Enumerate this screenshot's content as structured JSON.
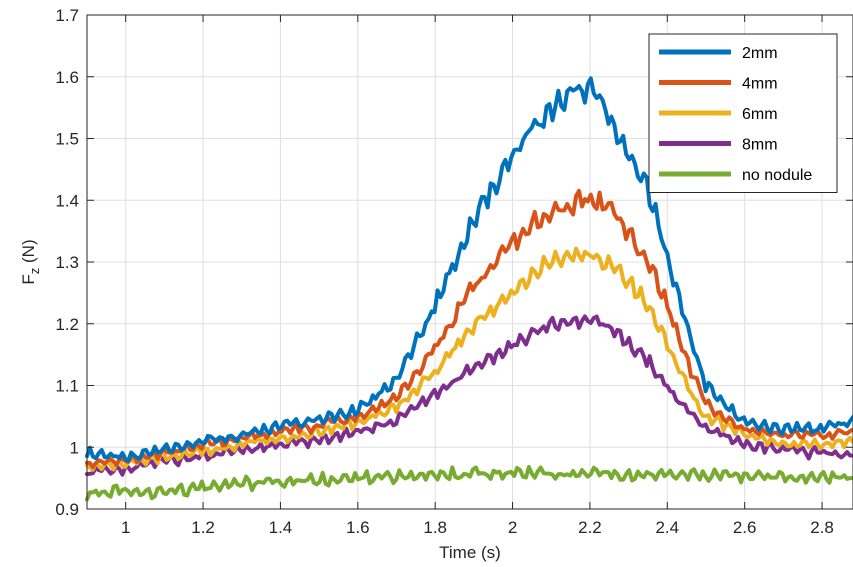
{
  "chart_data": {
    "type": "line",
    "title": "",
    "xlabel": "Time (s)",
    "ylabel_main": "F",
    "ylabel_sub": "z",
    "ylabel_unit": " (N)",
    "xlim": [
      0.9,
      2.88
    ],
    "ylim": [
      0.9,
      1.7
    ],
    "xticks": [
      1,
      1.2,
      1.4,
      1.6,
      1.8,
      2,
      2.2,
      2.4,
      2.6,
      2.8
    ],
    "xtick_labels": [
      "1",
      "1.2",
      "1.4",
      "1.6",
      "1.8",
      "2",
      "2.2",
      "2.4",
      "2.6",
      "2.8"
    ],
    "yticks": [
      0.9,
      1.0,
      1.1,
      1.2,
      1.3,
      1.4,
      1.5,
      1.6,
      1.7
    ],
    "ytick_labels": [
      "0.9",
      "1",
      "1.1",
      "1.2",
      "1.3",
      "1.4",
      "1.5",
      "1.6",
      "1.7"
    ],
    "grid": true,
    "legend_position": "top-right",
    "series": [
      {
        "name": "2mm",
        "color": "#0072BD",
        "x": [
          0.9,
          1.0,
          1.1,
          1.2,
          1.3,
          1.4,
          1.5,
          1.6,
          1.7,
          1.8,
          1.9,
          2.0,
          2.05,
          2.1,
          2.15,
          2.2,
          2.25,
          2.3,
          2.35,
          2.4,
          2.45,
          2.5,
          2.6,
          2.7,
          2.8,
          2.88
        ],
        "y": [
          0.99,
          0.985,
          0.995,
          1.01,
          1.02,
          1.035,
          1.045,
          1.06,
          1.11,
          1.23,
          1.37,
          1.47,
          1.52,
          1.545,
          1.575,
          1.58,
          1.54,
          1.48,
          1.42,
          1.31,
          1.2,
          1.1,
          1.04,
          1.03,
          1.03,
          1.04
        ]
      },
      {
        "name": "4mm",
        "color": "#D95319",
        "x": [
          0.9,
          1.0,
          1.1,
          1.2,
          1.3,
          1.4,
          1.5,
          1.6,
          1.7,
          1.8,
          1.9,
          2.0,
          2.05,
          2.1,
          2.15,
          2.2,
          2.25,
          2.3,
          2.35,
          2.4,
          2.45,
          2.5,
          2.6,
          2.7,
          2.8,
          2.88
        ],
        "y": [
          0.975,
          0.98,
          0.99,
          1.005,
          1.015,
          1.025,
          1.035,
          1.05,
          1.08,
          1.16,
          1.26,
          1.33,
          1.36,
          1.38,
          1.395,
          1.4,
          1.385,
          1.35,
          1.3,
          1.23,
          1.14,
          1.07,
          1.03,
          1.02,
          1.02,
          1.025
        ]
      },
      {
        "name": "6mm",
        "color": "#EDB120",
        "x": [
          0.9,
          1.0,
          1.1,
          1.2,
          1.3,
          1.4,
          1.5,
          1.6,
          1.7,
          1.8,
          1.9,
          2.0,
          2.05,
          2.1,
          2.15,
          2.2,
          2.25,
          2.3,
          2.35,
          2.4,
          2.45,
          2.5,
          2.6,
          2.7,
          2.8,
          2.88
        ],
        "y": [
          0.97,
          0.975,
          0.985,
          0.995,
          1.005,
          1.015,
          1.025,
          1.04,
          1.065,
          1.12,
          1.2,
          1.25,
          1.28,
          1.3,
          1.31,
          1.31,
          1.3,
          1.27,
          1.23,
          1.17,
          1.1,
          1.05,
          1.02,
          1.005,
          1.005,
          1.01
        ]
      },
      {
        "name": "8mm",
        "color": "#7E2F8E",
        "x": [
          0.9,
          1.0,
          1.1,
          1.2,
          1.3,
          1.4,
          1.5,
          1.6,
          1.7,
          1.8,
          1.9,
          2.0,
          2.05,
          2.1,
          2.15,
          2.2,
          2.25,
          2.3,
          2.35,
          2.4,
          2.45,
          2.5,
          2.6,
          2.7,
          2.8,
          2.88
        ],
        "y": [
          0.96,
          0.965,
          0.975,
          0.985,
          0.995,
          1.005,
          1.012,
          1.025,
          1.045,
          1.085,
          1.13,
          1.165,
          1.185,
          1.2,
          1.205,
          1.205,
          1.195,
          1.17,
          1.14,
          1.1,
          1.06,
          1.03,
          1.005,
          0.995,
          0.99,
          0.99
        ]
      },
      {
        "name": "no nodule",
        "color": "#77AC30",
        "x": [
          0.9,
          1.0,
          1.1,
          1.2,
          1.3,
          1.4,
          1.5,
          1.6,
          1.7,
          1.8,
          1.9,
          2.0,
          2.1,
          2.2,
          2.3,
          2.4,
          2.5,
          2.6,
          2.7,
          2.8,
          2.88
        ],
        "y": [
          0.925,
          0.93,
          0.925,
          0.935,
          0.94,
          0.945,
          0.947,
          0.95,
          0.952,
          0.955,
          0.957,
          0.958,
          0.957,
          0.956,
          0.955,
          0.955,
          0.954,
          0.953,
          0.952,
          0.952,
          0.951
        ]
      }
    ]
  }
}
